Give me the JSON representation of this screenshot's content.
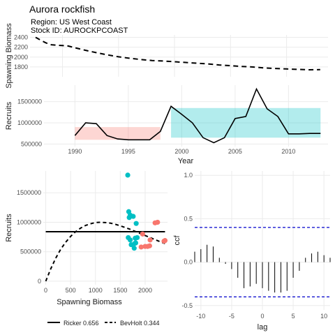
{
  "title": "Aurora rockfish",
  "subtitle_region": "Region: US West Coast",
  "subtitle_stock": "Stock ID: AUROCKPCOAST",
  "colors": {
    "period1_fill": "#f8766d",
    "period2_fill": "#00bfc4",
    "line": "#000000",
    "ci_line": "#0000cc",
    "grid": "#ebebeb"
  },
  "chart_data": [
    {
      "type": "line",
      "ylabel": "Spawning Biomass",
      "ylim": [
        1600,
        2450
      ],
      "y_ticks": [
        "1800",
        "2000",
        "2200",
        "2400"
      ],
      "line_style": "dashed",
      "x": [
        1987.6,
        1988,
        1988.5,
        1989,
        1989.5,
        1990,
        1990.5,
        1991,
        1992,
        1993,
        1994,
        1995,
        1996,
        1997,
        1998,
        1999,
        2000,
        2001,
        2002,
        2003,
        2004,
        2005,
        2006,
        2007,
        2008,
        2009,
        2010,
        2011,
        2012,
        2013
      ],
      "values": [
        2400,
        2350,
        2290,
        2250,
        2240,
        2235,
        2225,
        2195,
        2140,
        2090,
        2045,
        2005,
        1975,
        1950,
        1930,
        1920,
        1905,
        1890,
        1875,
        1860,
        1840,
        1825,
        1810,
        1798,
        1780,
        1768,
        1758,
        1750,
        1742,
        1745
      ]
    },
    {
      "type": "line",
      "xlabel": "Year",
      "ylabel": "Recruits",
      "xlim": [
        1987.1,
        2013.7
      ],
      "ylim": [
        440000,
        1890000
      ],
      "x_ticks": [
        "1990",
        "1995",
        "2000",
        "2005",
        "2010"
      ],
      "y_ticks": [
        "500000",
        "1000000",
        "1500000"
      ],
      "x": [
        1990,
        1991,
        1992,
        1993,
        1994,
        1995,
        1996,
        1997,
        1998,
        1999,
        2000,
        2001,
        2002,
        2003,
        2004,
        2005,
        2006,
        2007,
        2008,
        2009,
        2010,
        2011,
        2012,
        2013
      ],
      "values": [
        700000,
        1000000,
        980000,
        700000,
        620000,
        600000,
        600000,
        600000,
        800000,
        1390000,
        1200000,
        1000000,
        650000,
        530000,
        650000,
        1100000,
        1150000,
        1800000,
        1330000,
        1150000,
        740000,
        740000,
        750000,
        750000
      ],
      "period_bands": [
        {
          "x_range": [
            1990,
            1998
          ],
          "y_range": [
            600000,
            900000
          ]
        },
        {
          "x_range": [
            1999,
            2013
          ],
          "y_range": [
            650000,
            1350000
          ]
        }
      ]
    },
    {
      "type": "scatter",
      "xlabel": "Spawning Biomass",
      "ylabel": "Recruits",
      "xlim": [
        -50,
        2450
      ],
      "ylim": [
        -60000,
        1870000
      ],
      "x_ticks": [
        "0",
        "500",
        "1000",
        "1500",
        "2000"
      ],
      "y_ticks": [
        "0",
        "500000",
        "1000000",
        "1500000"
      ],
      "points_group1": [
        [
          2400,
          690000
        ],
        [
          2380,
          680000
        ],
        [
          2250,
          1000000
        ],
        [
          2200,
          990000
        ],
        [
          2100,
          700000
        ],
        [
          2090,
          600000
        ],
        [
          2050,
          590000
        ],
        [
          2000,
          590000
        ],
        [
          1950,
          800000
        ],
        [
          1920,
          580000
        ]
      ],
      "points_group2": [
        [
          1650,
          1800000
        ],
        [
          1670,
          1180000
        ],
        [
          1700,
          1120000
        ],
        [
          1680,
          1080000
        ],
        [
          1760,
          1100000
        ],
        [
          1820,
          980000
        ],
        [
          1660,
          740000
        ],
        [
          1700,
          700000
        ],
        [
          1720,
          620000
        ],
        [
          1780,
          560000
        ],
        [
          1790,
          640000
        ],
        [
          1810,
          650000
        ],
        [
          1840,
          740000
        ],
        [
          1800,
          730000
        ]
      ],
      "ricker_level": 840000,
      "bevholt_curve": [
        [
          0,
          0
        ],
        [
          100,
          210000
        ],
        [
          200,
          390000
        ],
        [
          300,
          540000
        ],
        [
          400,
          660000
        ],
        [
          500,
          760000
        ],
        [
          600,
          840000
        ],
        [
          700,
          900000
        ],
        [
          800,
          945000
        ],
        [
          900,
          975000
        ],
        [
          1000,
          995000
        ],
        [
          1100,
          1000000
        ],
        [
          1200,
          995000
        ],
        [
          1300,
          985000
        ],
        [
          1400,
          965000
        ],
        [
          1500,
          940000
        ],
        [
          1600,
          910000
        ],
        [
          1700,
          880000
        ],
        [
          1800,
          845000
        ],
        [
          1900,
          810000
        ],
        [
          2000,
          775000
        ],
        [
          2100,
          740000
        ],
        [
          2200,
          705000
        ],
        [
          2300,
          670000
        ],
        [
          2400,
          640000
        ]
      ],
      "legend": [
        {
          "label": "Ricker 0.656",
          "style": "solid"
        },
        {
          "label": "BevHolt 0.344",
          "style": "dashed"
        }
      ]
    },
    {
      "type": "bar",
      "xlabel": "lag",
      "ylabel": "ccf",
      "xlim": [
        -11,
        11
      ],
      "ylim": [
        -0.55,
        1.05
      ],
      "x_ticks": [
        "-10",
        "-5",
        "0",
        "5",
        "10"
      ],
      "y_ticks": [
        "-0.5",
        "0.0",
        "0.5",
        "1.0"
      ],
      "ci": 0.4,
      "lags": [
        -11,
        -10,
        -9,
        -8,
        -7,
        -6,
        -5,
        -4,
        -3,
        -2,
        -1,
        0,
        1,
        2,
        3,
        4,
        5,
        6,
        7,
        8,
        9,
        10,
        11
      ],
      "values": [
        0.12,
        0.15,
        0.2,
        0.18,
        0.05,
        -0.02,
        -0.08,
        -0.18,
        -0.3,
        -0.28,
        -0.25,
        -0.3,
        -0.33,
        -0.35,
        -0.35,
        -0.33,
        -0.18,
        -0.1,
        0.05,
        0.1,
        0.12,
        0.08,
        0.05
      ]
    }
  ]
}
